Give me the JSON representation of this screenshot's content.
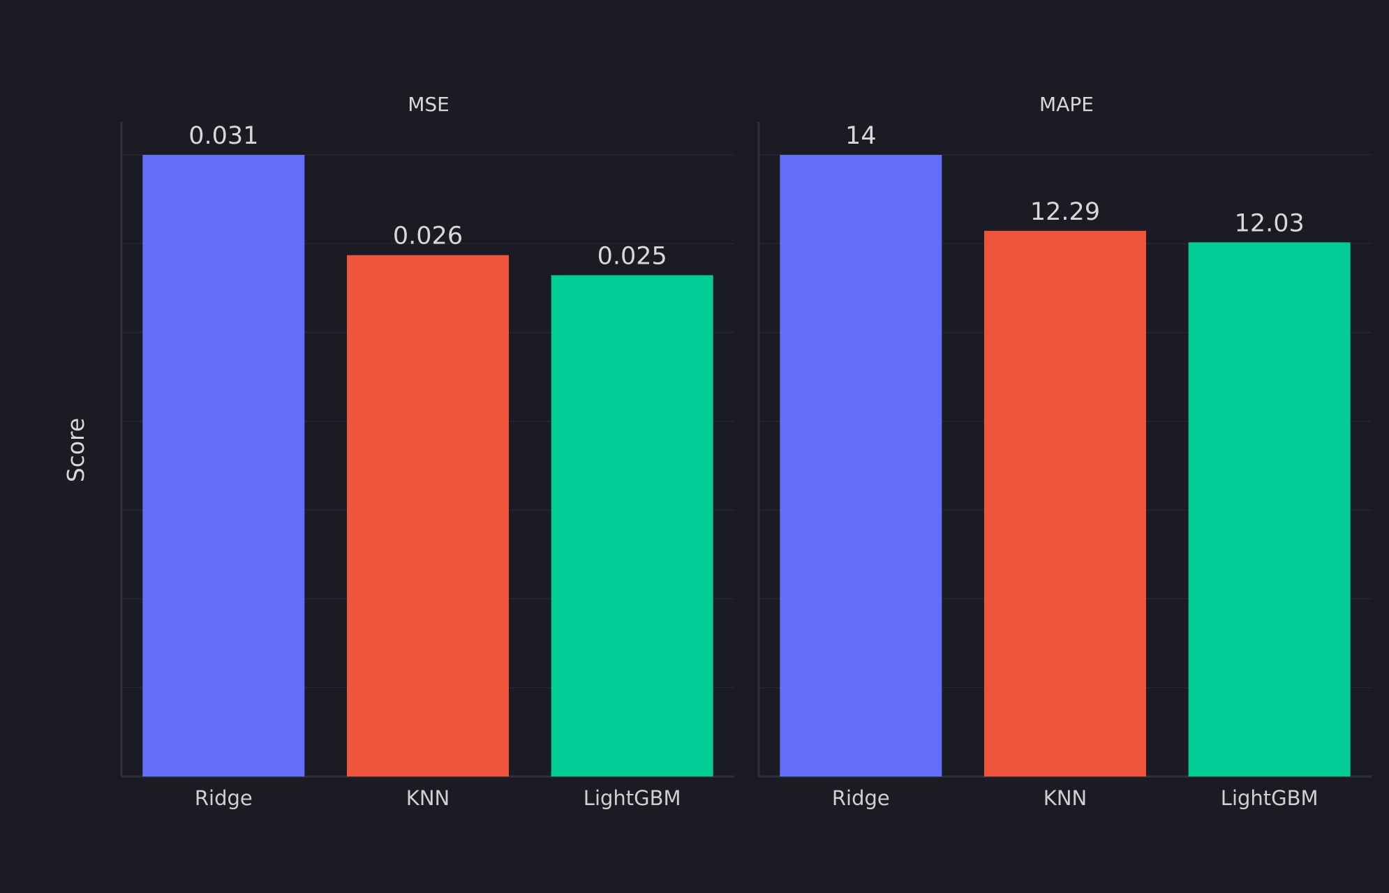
{
  "chart_data": {
    "type": "bar",
    "ylabel": "Score",
    "subplots": [
      {
        "title": "MSE",
        "categories": [
          "Ridge",
          "KNN",
          "LightGBM"
        ],
        "values": [
          0.031,
          0.026,
          0.025
        ],
        "value_labels": [
          "0.031",
          "0.026",
          "0.025"
        ],
        "colors": [
          "#636efa",
          "#ef553b",
          "#00cc96"
        ],
        "ylim": [
          0,
          0.031
        ],
        "grid": true
      },
      {
        "title": "MAPE",
        "categories": [
          "Ridge",
          "KNN",
          "LightGBM"
        ],
        "values": [
          14,
          12.29,
          12.03
        ],
        "value_labels": [
          "14",
          "12.29",
          "12.03"
        ],
        "colors": [
          "#636efa",
          "#ef553b",
          "#00cc96"
        ],
        "ylim": [
          0,
          14
        ],
        "grid": true
      }
    ]
  }
}
